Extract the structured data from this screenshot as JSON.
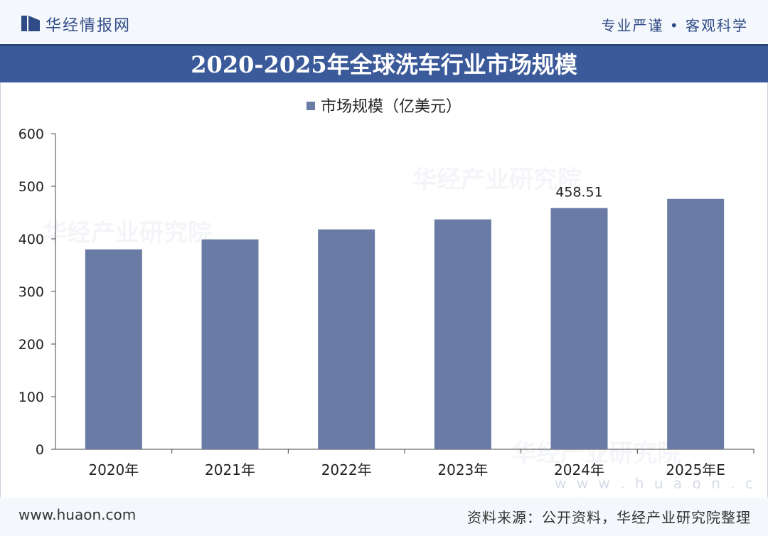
{
  "header": {
    "brand": "华经情报网",
    "slogan": "专业严谨 • 客观科学"
  },
  "footer": {
    "site": "www.huaon.com",
    "source": "资料来源：公开资料，华经产业研究院整理"
  },
  "watermark": {
    "text": "华经产业研究院",
    "url": "w w w . h u a o n . c o m"
  },
  "colors": {
    "bar": "#6a7ca6",
    "title_bg": "#3b5a9a",
    "brand": "#2f4b86"
  },
  "chart_data": {
    "type": "bar",
    "title": "2020-2025年全球洗车行业市场规模",
    "legend": [
      "市场规模（亿美元）"
    ],
    "legend_position": "top-center",
    "categories": [
      "2020年",
      "2021年",
      "2022年",
      "2023年",
      "2024年",
      "2025年E"
    ],
    "series": [
      {
        "name": "市场规模（亿美元）",
        "values": [
          380,
          399,
          418,
          437,
          458.51,
          476
        ]
      }
    ],
    "data_labels": [
      null,
      null,
      null,
      null,
      "458.51",
      null
    ],
    "yticks": [
      "0",
      "100",
      "200",
      "300",
      "400",
      "500",
      "600"
    ],
    "ylim": [
      0,
      600
    ],
    "grid": false
  }
}
